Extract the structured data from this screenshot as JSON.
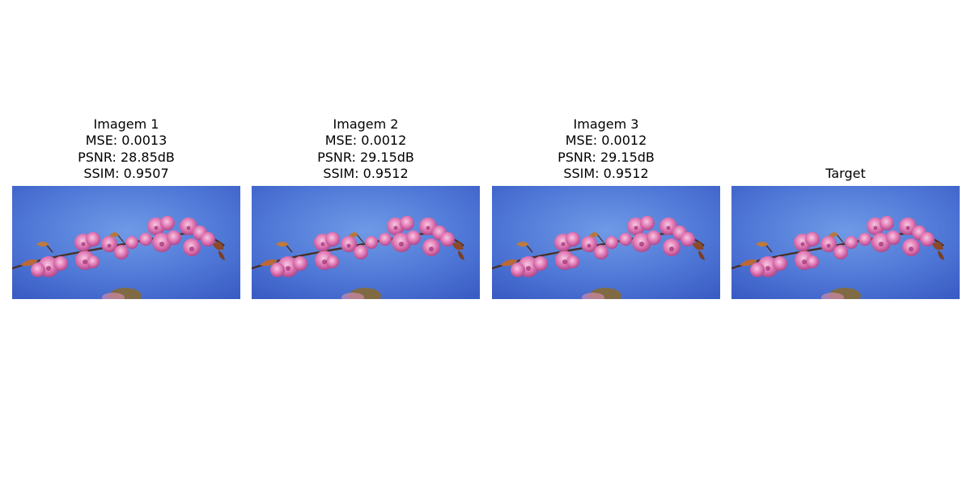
{
  "panels": [
    {
      "title": "Imagem 1",
      "mse": "MSE: 0.0013",
      "psnr": "PSNR: 28.85dB",
      "ssim": "SSIM: 0.9507"
    },
    {
      "title": "Imagem 2",
      "mse": "MSE: 0.0012",
      "psnr": "PSNR: 29.15dB",
      "ssim": "SSIM: 0.9512"
    },
    {
      "title": "Imagem 3",
      "mse": "MSE: 0.0012",
      "psnr": "PSNR: 29.15dB",
      "ssim": "SSIM: 0.9512"
    },
    {
      "title": "Target"
    }
  ],
  "image_content": "pink-cherry-blossom-branch-against-blue-sky",
  "colors": {
    "sky": "#4a72d4",
    "sky_light": "#6a93e2",
    "blossom": "#e07ab4",
    "blossom_dark": "#b24a8a",
    "branch": "#5a3a2a",
    "leaf": "#b86a3a"
  }
}
